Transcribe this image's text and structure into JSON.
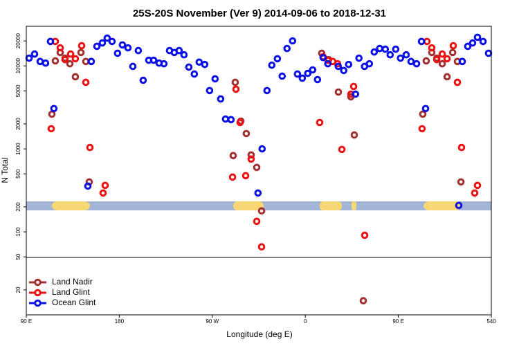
{
  "chart_data": {
    "type": "scatter",
    "title": "25S-20S November (Ver 9)   2014-09-06 to 2018-12-31",
    "xlabel": "Longitude (deg E)",
    "ylabel": "N Total",
    "log_y": true,
    "legend": "lower left",
    "xlim": [
      90,
      540
    ],
    "xticks": [
      {
        "value": 90,
        "label": "90 E"
      },
      180,
      {
        "value": 270,
        "label": "90 W"
      },
      {
        "value": 360,
        "label": "0"
      },
      {
        "value": 450,
        "label": "90 E"
      },
      540
    ],
    "ylim": [
      10,
      30000
    ],
    "yticks": [
      20,
      50,
      100,
      200,
      500,
      1000,
      2000,
      5000,
      10000,
      20000
    ],
    "series": [
      {
        "name": "Land Nadir",
        "color": "#a3302e",
        "x": [
          114.8,
          118.1,
          122.8,
          127.5,
          132.2,
          137.5,
          142.9,
          147.6,
          150.9,
          290.2,
          292.2,
          297.6,
          302.9,
          307.6,
          313,
          317.7,
          375.9,
          382.6,
          392,
          404.1,
          407.4,
          416.1,
          473.7,
          477,
          482.4,
          487.2,
          492.5,
          497.2,
          502.6,
          507.2,
          510.6
        ],
        "values": [
          2620,
          11500,
          14500,
          12400,
          10600,
          7390,
          14500,
          11300,
          400,
          830,
          6340,
          2160,
          1530,
          845,
          598,
          179,
          14200,
          11900,
          4840,
          4240,
          1470,
          14.8,
          2620,
          11500,
          14500,
          12400,
          10600,
          7390,
          14500,
          11300,
          400
        ]
      },
      {
        "name": "Land Glint",
        "color": "#ee1111",
        "x": [
          114.1,
          118.1,
          122.8,
          127.5,
          132.9,
          137.5,
          143.6,
          147.6,
          151.6,
          164.3,
          166.3,
          289.6,
          292.9,
          296.9,
          302.3,
          307.6,
          313,
          317.7,
          373.9,
          377.2,
          381.8,
          386.6,
          391.3,
          395.4,
          404.1,
          406.8,
          417.5,
          473,
          477.7,
          482.4,
          487.2,
          492.5,
          497.2,
          503.2,
          507.2,
          511.2,
          523.9,
          526.6
        ],
        "values": [
          1750,
          19700,
          16500,
          11900,
          13900,
          12200,
          17500,
          6340,
          1040,
          294,
          363,
          457,
          5240,
          2080,
          475,
          754,
          134,
          66,
          2080,
          12900,
          11700,
          11300,
          10600,
          986,
          4570,
          5650,
          91,
          1750,
          19700,
          16500,
          11900,
          13900,
          12200,
          17500,
          6340,
          1040,
          294,
          363
        ]
      },
      {
        "name": "Ocean Glint",
        "color": "#0a10e6",
        "x": [
          92.7,
          98,
          103.4,
          108.7,
          113.4,
          116.7,
          149.6,
          152.9,
          158.3,
          163.6,
          168.3,
          173,
          178.3,
          183,
          188.4,
          193.1,
          198.4,
          203.1,
          208.5,
          213.2,
          218.5,
          223.2,
          228.6,
          233.2,
          237.9,
          242.6,
          247.3,
          252.6,
          257.3,
          262.7,
          267.4,
          272.7,
          278.1,
          282.8,
          288.1,
          314.2,
          318.2,
          322.9,
          327.6,
          333,
          337.6,
          342.3,
          347.7,
          352.4,
          357.1,
          362.4,
          367.1,
          371.8,
          377.2,
          381.8,
          391.9,
          397.2,
          401.9,
          408.6,
          411.9,
          417.3,
          422,
          426.7,
          432,
          437.4,
          442.1,
          447.5,
          452.1,
          457.6,
          462.3,
          467.7,
          472.4,
          476.4,
          508.5,
          511.9,
          517.2,
          521.9,
          526.6,
          532,
          537.3
        ],
        "values": [
          12400,
          13900,
          11300,
          10800,
          19700,
          3060,
          356,
          11300,
          17200,
          18900,
          21600,
          19700,
          14200,
          17900,
          16500,
          9860,
          15300,
          6710,
          11700,
          11700,
          10800,
          10600,
          15300,
          14500,
          15300,
          13600,
          9670,
          7980,
          11100,
          10400,
          5040,
          6980,
          4000,
          2290,
          2250,
          294,
          1000,
          5040,
          10200,
          12200,
          7530,
          16200,
          20000,
          7980,
          7110,
          8130,
          8950,
          6840,
          12600,
          10600,
          9860,
          8790,
          10400,
          4570,
          12400,
          9860,
          10600,
          14700,
          16200,
          15900,
          13600,
          15900,
          12400,
          13600,
          11300,
          10600,
          19700,
          3060,
          208,
          11300,
          17200,
          18900,
          22100,
          19700,
          14200
        ]
      }
    ]
  }
}
